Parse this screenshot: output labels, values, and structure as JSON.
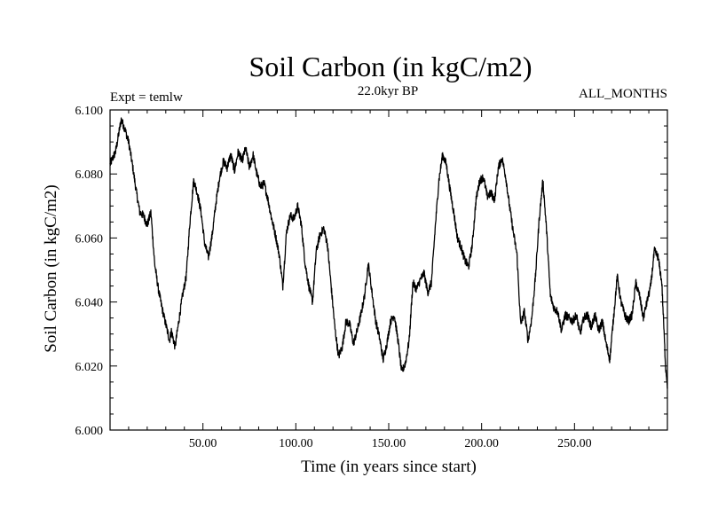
{
  "chart_data": {
    "type": "line",
    "title": "Soil Carbon (in kgC/m2)",
    "subtitle": "22.0kyr BP",
    "left_label": "Expt = temlw",
    "right_label": "ALL_MONTHS",
    "xlabel": "Time (in years since start)",
    "ylabel": "Soil Carbon (in kgC/m2)",
    "xlim": [
      0,
      300
    ],
    "ylim": [
      6.0,
      6.1
    ],
    "x_ticks": [
      50,
      100,
      150,
      200,
      250
    ],
    "x_tick_labels": [
      "50.00",
      "100.00",
      "150.00",
      "200.00",
      "250.00"
    ],
    "y_ticks": [
      6.0,
      6.02,
      6.04,
      6.06,
      6.08,
      6.1
    ],
    "y_tick_labels": [
      "6.000",
      "6.020",
      "6.040",
      "6.060",
      "6.080",
      "6.100"
    ],
    "grid": false,
    "series": [
      {
        "name": "Soil Carbon",
        "color": "#000000",
        "x": [
          0,
          3,
          6,
          8,
          10,
          12,
          14,
          16,
          18,
          20,
          22,
          24,
          26,
          28,
          30,
          32,
          33,
          35,
          37,
          39,
          41,
          43,
          45,
          47,
          49,
          51,
          53,
          55,
          57,
          59,
          61,
          63,
          65,
          67,
          69,
          71,
          73,
          75,
          77,
          79,
          81,
          83,
          85,
          87,
          89,
          91,
          93,
          95,
          97,
          99,
          101,
          103,
          105,
          107,
          109,
          111,
          113,
          115,
          117,
          119,
          121,
          123,
          125,
          127,
          129,
          131,
          133,
          135,
          137,
          139,
          141,
          143,
          145,
          147,
          149,
          151,
          153,
          155,
          157,
          159,
          161,
          163,
          165,
          167,
          169,
          171,
          173,
          175,
          177,
          179,
          181,
          183,
          185,
          187,
          189,
          191,
          193,
          195,
          197,
          199,
          201,
          203,
          205,
          207,
          209,
          211,
          213,
          215,
          217,
          219,
          221,
          223,
          225,
          227,
          229,
          231,
          233,
          235,
          237,
          239,
          241,
          243,
          245,
          247,
          249,
          251,
          253,
          255,
          257,
          259,
          261,
          263,
          265,
          267,
          269,
          271,
          273,
          275,
          277,
          279,
          281,
          283,
          285,
          287,
          289,
          291,
          293,
          295,
          297,
          299,
          300
        ],
        "y": [
          6.083,
          6.087,
          6.097,
          6.094,
          6.09,
          6.083,
          6.075,
          6.068,
          6.067,
          6.064,
          6.068,
          6.052,
          6.044,
          6.038,
          6.033,
          6.028,
          6.031,
          6.026,
          6.034,
          6.042,
          6.048,
          6.065,
          6.078,
          6.074,
          6.068,
          6.058,
          6.054,
          6.061,
          6.071,
          6.079,
          6.084,
          6.082,
          6.086,
          6.081,
          6.087,
          6.084,
          6.088,
          6.082,
          6.086,
          6.08,
          6.076,
          6.077,
          6.072,
          6.066,
          6.061,
          6.055,
          6.045,
          6.062,
          6.067,
          6.066,
          6.07,
          6.064,
          6.052,
          6.045,
          6.04,
          6.056,
          6.061,
          6.063,
          6.058,
          6.045,
          6.032,
          6.023,
          6.026,
          6.034,
          6.033,
          6.027,
          6.031,
          6.036,
          6.042,
          6.052,
          6.043,
          6.034,
          6.029,
          6.022,
          6.027,
          6.034,
          6.036,
          6.028,
          6.018,
          6.021,
          6.028,
          6.046,
          6.044,
          6.047,
          6.049,
          6.043,
          6.046,
          6.063,
          6.078,
          6.086,
          6.083,
          6.075,
          6.068,
          6.06,
          6.057,
          6.053,
          6.051,
          6.058,
          6.072,
          6.078,
          6.079,
          6.073,
          6.074,
          6.072,
          6.082,
          6.085,
          6.079,
          6.07,
          6.062,
          6.055,
          6.033,
          6.037,
          6.028,
          6.035,
          6.048,
          6.066,
          6.078,
          6.062,
          6.042,
          6.038,
          6.037,
          6.031,
          6.036,
          6.035,
          6.034,
          6.036,
          6.03,
          6.035,
          6.036,
          6.032,
          6.036,
          6.031,
          6.034,
          6.027,
          6.022,
          6.035,
          6.048,
          6.04,
          6.036,
          6.034,
          6.036,
          6.046,
          6.042,
          6.035,
          6.04,
          6.045,
          6.056,
          6.054,
          6.046,
          6.02,
          6.014
        ]
      }
    ]
  }
}
